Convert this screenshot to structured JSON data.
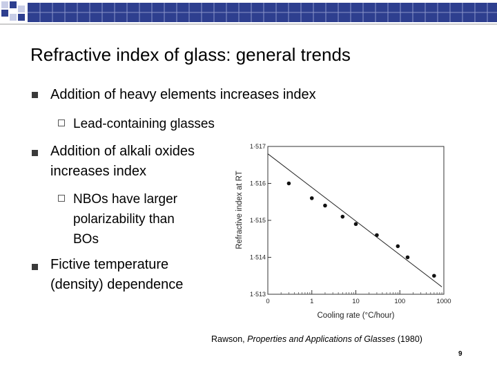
{
  "slide": {
    "title": "Refractive index of glass: general trends",
    "page_number": "9"
  },
  "bullets": [
    {
      "lines": [
        "Addition of heavy elements increases index"
      ],
      "sub": [
        {
          "lines": [
            "Lead-containing glasses"
          ]
        }
      ]
    },
    {
      "lines": [
        "Addition of alkali oxides",
        "increases index"
      ],
      "sub": [
        {
          "lines": [
            "NBOs have larger",
            "polarizability than",
            "BOs"
          ]
        }
      ]
    },
    {
      "lines": [
        "Fictive temperature",
        "(density) dependence"
      ],
      "sub": []
    }
  ],
  "citation": {
    "author": "Rawson, ",
    "work": "Properties and Applications of Glasses",
    "year": " (1980)"
  },
  "colors": {
    "header_accent": "#2e3f8f",
    "header_pale": "#c8cde6"
  },
  "chart_data": {
    "type": "scatter",
    "xlabel": "Cooling rate (°C/hour)",
    "ylabel": "Refractive index at RT",
    "x_scale": "log",
    "x_ticks": [
      "0",
      "1",
      "10",
      "100",
      "1000"
    ],
    "y_ticks": [
      "1·517",
      "1·516",
      "1·515",
      "1·514",
      "1·513"
    ],
    "ylim": [
      1.513,
      1.517
    ],
    "points": [
      {
        "x": 0.3,
        "y": 1.516
      },
      {
        "x": 1.0,
        "y": 1.5156
      },
      {
        "x": 2.0,
        "y": 1.5154
      },
      {
        "x": 5.0,
        "y": 1.5151
      },
      {
        "x": 10.0,
        "y": 1.5149
      },
      {
        "x": 30.0,
        "y": 1.5146
      },
      {
        "x": 90.0,
        "y": 1.5143
      },
      {
        "x": 150.0,
        "y": 1.514
      },
      {
        "x": 600.0,
        "y": 1.5135
      }
    ],
    "fit_line": {
      "x": [
        0.1,
        900.0
      ],
      "y": [
        1.5168,
        1.5132
      ]
    },
    "grid": false,
    "legend": "none"
  }
}
